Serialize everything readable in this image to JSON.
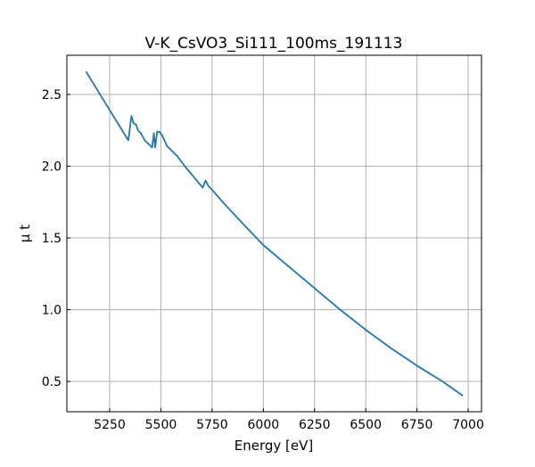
{
  "chart_data": {
    "type": "line",
    "title": "V-K_CsVO3_Si111_100ms_191113",
    "xlabel": "Energy [eV]",
    "ylabel": "μ t",
    "xlim": [
      5041,
      7065
    ],
    "ylim": [
      0.289,
      2.773
    ],
    "xticks": [
      5250,
      5500,
      5750,
      6000,
      6250,
      6500,
      6750,
      7000
    ],
    "xtick_labels": [
      "5250",
      "5500",
      "5750",
      "6000",
      "6250",
      "6500",
      "6750",
      "7000"
    ],
    "yticks": [
      0.5,
      1.0,
      1.5,
      2.0,
      2.5
    ],
    "ytick_labels": [
      "0.5",
      "1.0",
      "1.5",
      "2.0",
      "2.5"
    ],
    "grid": true,
    "series": [
      {
        "name": "mu_t",
        "color": "#1f77b4",
        "x": [
          5134,
          5341,
          5356,
          5366,
          5379,
          5388,
          5402,
          5421,
          5457,
          5466,
          5472,
          5482,
          5493,
          5508,
          5530,
          5580,
          5617,
          5704,
          5718,
          5733,
          5747,
          5808,
          5900,
          6000,
          6125,
          6250,
          6375,
          6500,
          6625,
          6750,
          6875,
          6974
        ],
        "y": [
          2.66,
          2.18,
          2.35,
          2.3,
          2.29,
          2.25,
          2.23,
          2.18,
          2.13,
          2.23,
          2.13,
          2.24,
          2.24,
          2.21,
          2.14,
          2.07,
          2.0,
          1.85,
          1.9,
          1.86,
          1.84,
          1.74,
          1.6,
          1.45,
          1.3,
          1.15,
          1.0,
          0.86,
          0.73,
          0.61,
          0.5,
          0.4
        ]
      }
    ]
  }
}
